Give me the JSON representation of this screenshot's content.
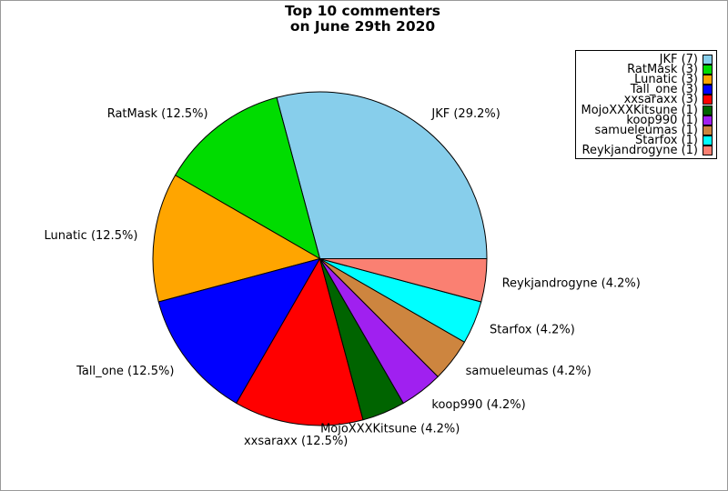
{
  "window": {
    "background_color": "#ffffff",
    "border_color": "#999999"
  },
  "title": {
    "line1": "Top 10 commenters",
    "line2": "on June 29th 2020"
  },
  "chart_data": {
    "type": "pie",
    "title": "Top 10 commenters on June 29th 2020",
    "total": 24,
    "startangle": 0,
    "direction": "counterclockwise",
    "labeldistance": 1.1,
    "legend_position": "upper-right",
    "legend_marker_side": "right",
    "slices": [
      {
        "name": "JKF",
        "count": 7,
        "pct_label": "29.2%",
        "label": "JKF (29.2%)",
        "legend_label": "JKF (7)",
        "color": "#87CEEB"
      },
      {
        "name": "RatMask",
        "count": 3,
        "pct_label": "12.5%",
        "label": "RatMask (12.5%)",
        "legend_label": "RatMask (3)",
        "color": "#00DC00"
      },
      {
        "name": "Lunatic",
        "count": 3,
        "pct_label": "12.5%",
        "label": "Lunatic (12.5%)",
        "legend_label": "Lunatic (3)",
        "color": "#FFA500"
      },
      {
        "name": "Tall_one",
        "count": 3,
        "pct_label": "12.5%",
        "label": "Tall_one (12.5%)",
        "legend_label": "Tall_one (3)",
        "color": "#0000FF"
      },
      {
        "name": "xxsaraxx",
        "count": 3,
        "pct_label": "12.5%",
        "label": "xxsaraxx (12.5%)",
        "legend_label": "xxsaraxx (3)",
        "color": "#FF0000"
      },
      {
        "name": "MojoXXXKitsune",
        "count": 1,
        "pct_label": "4.2%",
        "label": "MojoXXXKitsune (4.2%)",
        "legend_label": "MojoXXXKitsune (1)",
        "color": "#006400"
      },
      {
        "name": "koop990",
        "count": 1,
        "pct_label": "4.2%",
        "label": "koop990 (4.2%)",
        "legend_label": "koop990 (1)",
        "color": "#A020F0"
      },
      {
        "name": "samueleumas",
        "count": 1,
        "pct_label": "4.2%",
        "label": "samueleumas (4.2%)",
        "legend_label": "samueleumas (1)",
        "color": "#CD853F"
      },
      {
        "name": "Starfox",
        "count": 1,
        "pct_label": "4.2%",
        "label": "Starfox (4.2%)",
        "legend_label": "Starfox (1)",
        "color": "#00FFFF"
      },
      {
        "name": "Reykjandrogyne",
        "count": 1,
        "pct_label": "4.2%",
        "label": "Reykjandrogyne (4.2%)",
        "legend_label": "Reykjandrogyne (1)",
        "color": "#FA8072"
      }
    ]
  }
}
